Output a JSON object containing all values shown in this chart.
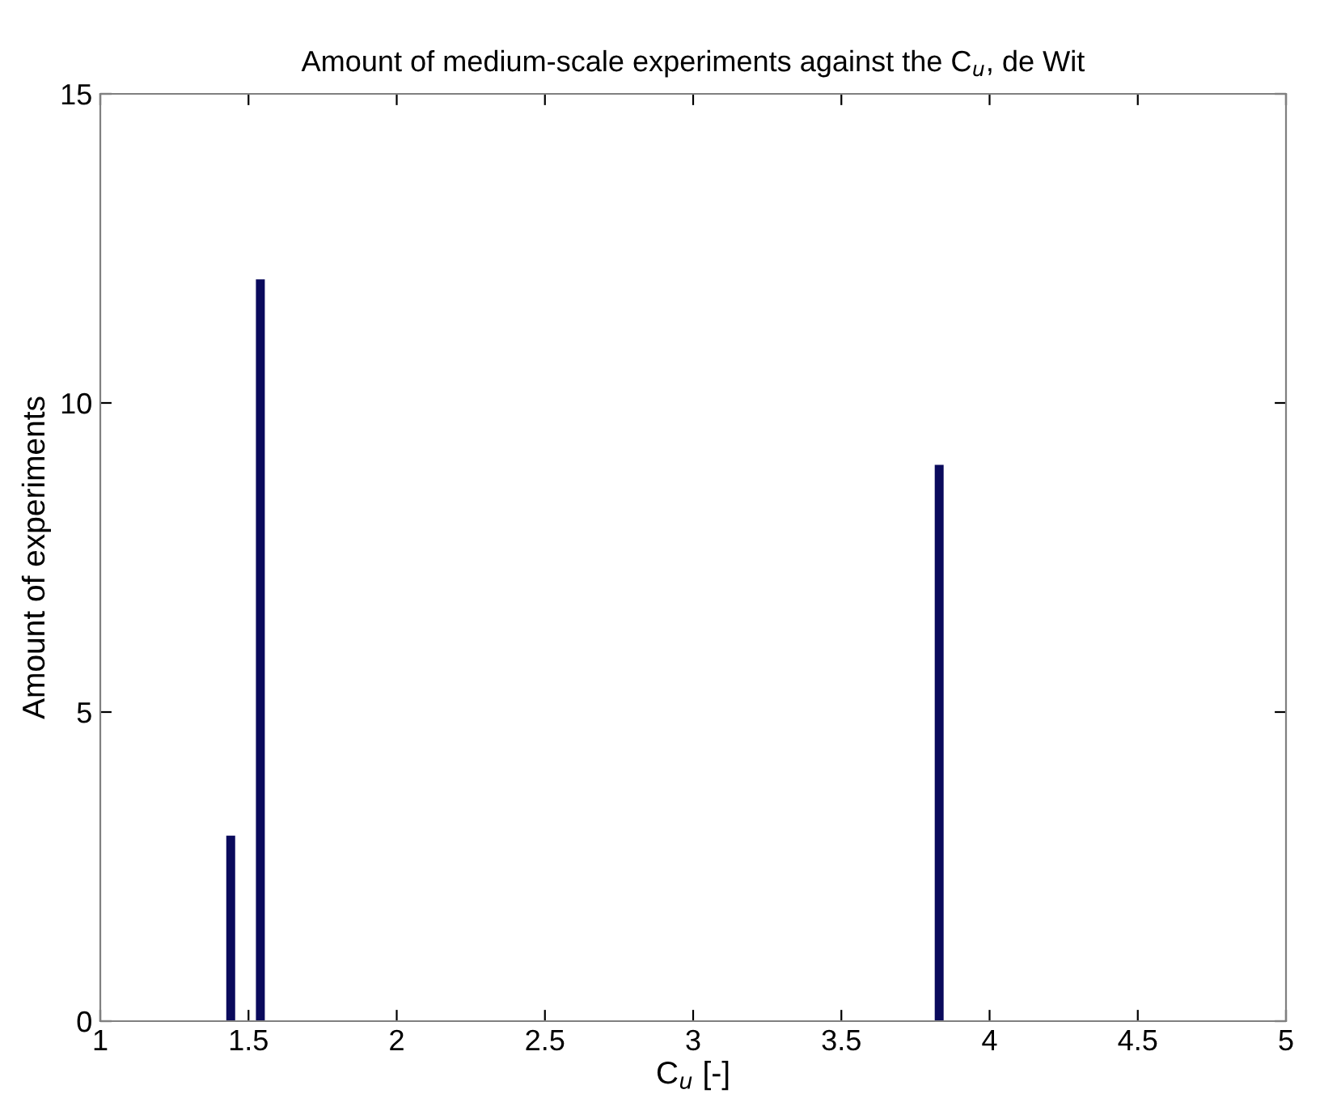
{
  "chart_data": {
    "type": "bar",
    "title": "Amount of medium-scale experiments against the C$_{u}$, de Wit",
    "xlabel": "C$_{u}$ [-]",
    "ylabel": "Amount of experiments",
    "x": [
      1.44,
      1.54,
      3.83
    ],
    "series": [
      {
        "color": "#0a0a5c",
        "values": [
          3,
          12,
          9
        ]
      }
    ],
    "xlim": [
      1,
      5
    ],
    "xticks": [
      1,
      1.5,
      2,
      2.5,
      3,
      3.5,
      4,
      4.5,
      5
    ],
    "ylim": [
      0,
      15
    ],
    "yticks": [
      0,
      5,
      10,
      15
    ],
    "grid": false,
    "legend": false
  }
}
